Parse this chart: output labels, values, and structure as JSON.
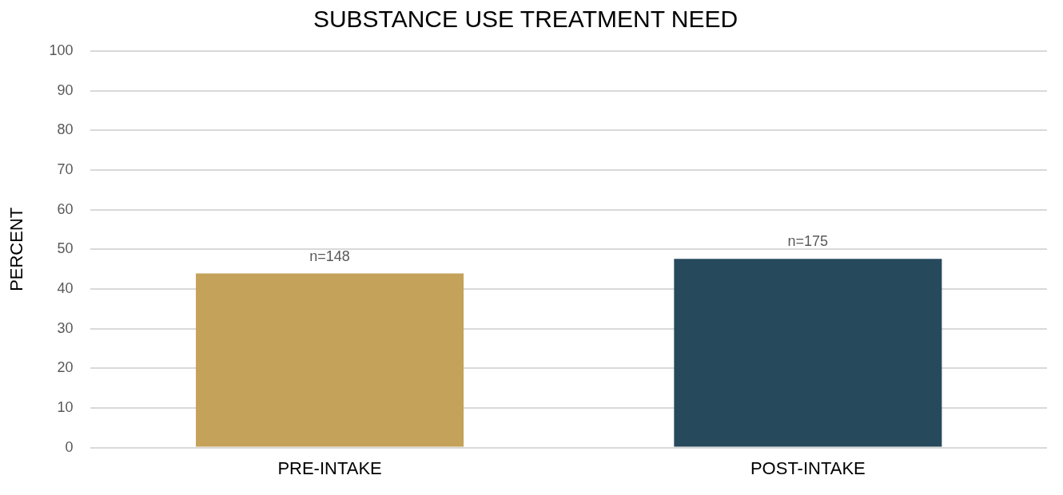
{
  "chart_data": {
    "type": "bar",
    "title": "SUBSTANCE USE TREATMENT NEED",
    "ylabel": "PERCENT",
    "categories": [
      "PRE-INTAKE",
      "POST-INTAKE"
    ],
    "values": [
      43.9,
      47.6
    ],
    "colors": [
      "#c4a25a",
      "#264a5c"
    ],
    "annotations": [
      {
        "text": "n=148",
        "x": "PRE-INTAKE",
        "y": 43.9
      },
      {
        "text": "n=175",
        "x": "POST-INTAKE",
        "y": 47.6
      }
    ],
    "ylim": [
      0,
      100
    ],
    "yticks": [
      0,
      10,
      20,
      30,
      40,
      50,
      60,
      70,
      80,
      90,
      100
    ],
    "grid": "y",
    "legend": false
  }
}
